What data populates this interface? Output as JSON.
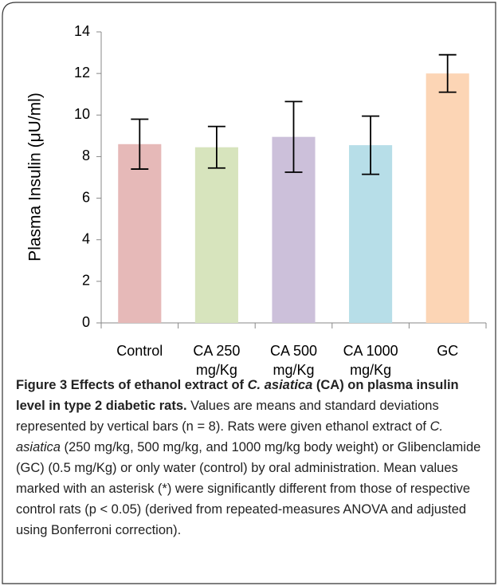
{
  "chart_data": {
    "type": "bar",
    "y_label": "Plasma Insulin (μU/ml)",
    "categories": [
      "Control",
      "CA 250 mg/Kg",
      "CA 500 mg/Kg",
      "CA 1000 mg/Kg",
      "GC"
    ],
    "values": [
      8.6,
      8.45,
      8.95,
      8.55,
      12.0
    ],
    "errors": [
      1.2,
      1.0,
      1.7,
      1.4,
      0.9
    ],
    "colors": [
      "#e6b9b8",
      "#d7e4bd",
      "#ccc0da",
      "#b7dee8",
      "#fcd5b5"
    ],
    "ylim": [
      0,
      14
    ],
    "yticks": [
      0,
      2,
      4,
      6,
      8,
      10,
      12,
      14
    ],
    "grid": false
  },
  "caption": [
    {
      "text": "Figure 3 Effects of ethanol extract of ",
      "style": "bold"
    },
    {
      "text": "C. asiatica",
      "style": "bold-italic"
    },
    {
      "text": " (CA) on plasma insulin level in type 2 diabetic rats.",
      "style": "bold"
    },
    {
      "text": " Values are means and standard deviations represented by vertical bars (n = 8). Rats were given ethanol extract of ",
      "style": "normal"
    },
    {
      "text": "C. asiatica",
      "style": "italic"
    },
    {
      "text": " (250 mg/kg, 500 mg/kg, and 1000 mg/kg body weight) or Glibenclamide (GC) (0.5 mg/Kg) or only water (control) by oral administration. Mean values marked with an asterisk (*) were significantly different from those of respective control rats (p < 0.05) (derived from repeated-measures ANOVA and adjusted using Bonferroni correction).",
      "style": "normal"
    }
  ]
}
